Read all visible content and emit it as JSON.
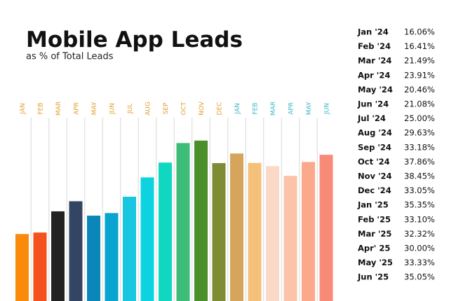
{
  "chart_data": {
    "type": "bar",
    "title": "Mobile App Leads",
    "subtitle": "as % of Total Leads",
    "categories": [
      "JAN",
      "FEB",
      "MAR",
      "APR",
      "MAY",
      "JUN",
      "JUL",
      "AUG",
      "SEP",
      "OCT",
      "NOV",
      "DEC",
      "JAN",
      "FEB",
      "MAR",
      "APR",
      "MAY",
      "JUN"
    ],
    "row_labels": [
      "Jan '24",
      "Feb '24",
      "Mar '24",
      "Apr '24",
      "May '24",
      "Jun '24",
      "Jul '24",
      "Aug '24",
      "Sep '24",
      "Oct '24",
      "Nov '24",
      "Dec '24",
      "Jan '25",
      "Feb '25",
      "Mar '25",
      "Apr' 25",
      "May '25",
      "Jun '25"
    ],
    "values": [
      16.06,
      16.41,
      21.49,
      23.91,
      20.46,
      21.08,
      25.0,
      29.63,
      33.18,
      37.86,
      38.45,
      33.05,
      35.35,
      33.1,
      32.32,
      30.0,
      33.33,
      35.05
    ],
    "value_labels": [
      "16.06%",
      "16.41%",
      "21.49%",
      "23.91%",
      "20.46%",
      "21.08%",
      "25.00%",
      "29.63%",
      "33.18%",
      "37.86%",
      "38.45%",
      "33.05%",
      "35.35%",
      "33.10%",
      "32.32%",
      "30.00%",
      "33.33%",
      "35.05%"
    ],
    "colors": [
      "#f98a0a",
      "#f4511e",
      "#222222",
      "#344563",
      "#0a87b8",
      "#0aa4d0",
      "#18c6e0",
      "#0dd3e0",
      "#10d8c0",
      "#3dbd78",
      "#4a8f2a",
      "#7e8c35",
      "#d4a55a",
      "#f5c07a",
      "#fad9c8",
      "#fbc3a8",
      "#fba98a",
      "#f98a78"
    ],
    "category_colors": [
      "#e0a030",
      "#e0a030",
      "#e0a030",
      "#e0a030",
      "#e0a030",
      "#e0a030",
      "#e0a030",
      "#e0a030",
      "#e0a030",
      "#e0a030",
      "#e0a030",
      "#e0a030",
      "#3bb8c8",
      "#3bb8c8",
      "#3bb8c8",
      "#3bb8c8",
      "#3bb8c8",
      "#3bb8c8"
    ]
  }
}
